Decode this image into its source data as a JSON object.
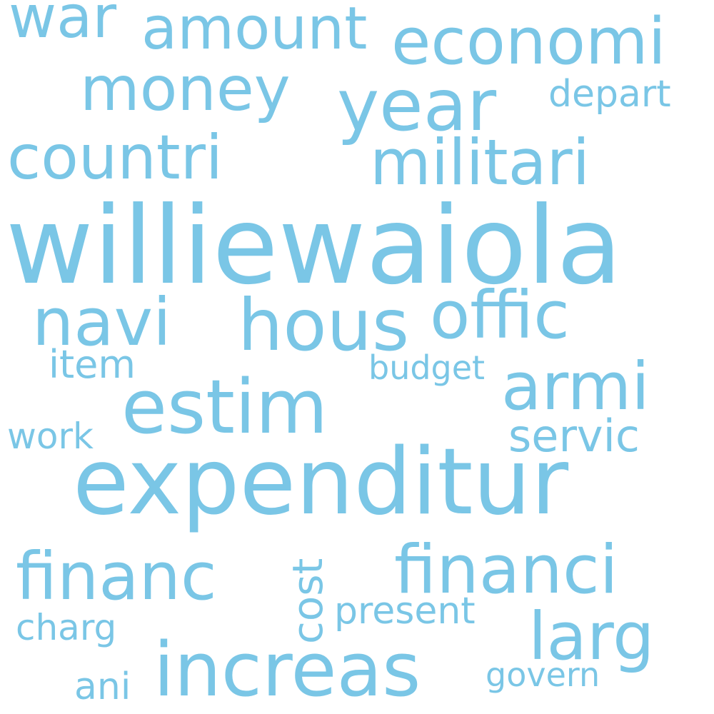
{
  "colors": {
    "background": "#ffffff",
    "word": "#7ac6e6"
  },
  "words": {
    "williewaiola": "williewaiola",
    "expenditur": "expenditur",
    "estim": "estim",
    "increas": "increas",
    "year": "year",
    "hous": "hous",
    "financi": "financi",
    "economi": "economi",
    "militari": "militari",
    "navi": "navi",
    "offic": "offic",
    "armi": "armi",
    "larg": "larg",
    "financ": "financ",
    "countri": "countri",
    "money": "money",
    "amount": "amount",
    "war": "war",
    "servic": "servic",
    "depart": "depart",
    "present": "present",
    "budget": "budget",
    "item": "item",
    "work": "work",
    "charg": "charg",
    "ani": "ani",
    "govern": "govern",
    "cost": "cost"
  }
}
